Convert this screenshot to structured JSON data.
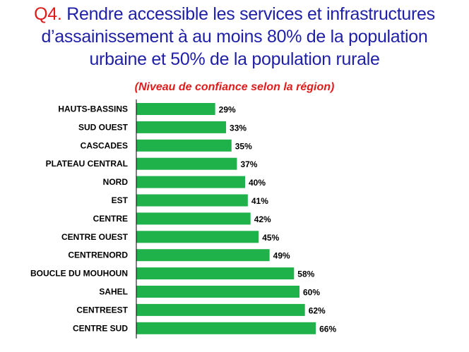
{
  "title": {
    "qnum": "Q4.",
    "line1": " Rendre accessible les services et infrastructures",
    "line2": "d’assainissement à au moins 80% de la population",
    "line3": "urbaine et 50% de la population rurale"
  },
  "subtitle": "(Niveau de confiance selon la région)",
  "colors": {
    "bar": "#1fb24a",
    "axis": "#000000"
  },
  "chart_data": {
    "type": "bar",
    "orientation": "horizontal",
    "title": "Q4. Rendre accessible les services et infrastructures d’assainissement à au moins 80% de la population urbaine et 50% de la population rurale",
    "subtitle": "(Niveau de confiance selon la région)",
    "categories": [
      "HAUTS-BASSINS",
      "SUD OUEST",
      "CASCADES",
      "PLATEAU CENTRAL",
      "NORD",
      "EST",
      "CENTRE",
      "CENTRE OUEST",
      "CENTRENORD",
      "BOUCLE DU MOUHOUN",
      "SAHEL",
      "CENTREEST",
      "CENTRE SUD"
    ],
    "values": [
      29,
      33,
      35,
      37,
      40,
      41,
      42,
      45,
      49,
      58,
      60,
      62,
      66
    ],
    "value_labels": [
      "29%",
      "33%",
      "35%",
      "37%",
      "40%",
      "41%",
      "42%",
      "45%",
      "49%",
      "58%",
      "60%",
      "62%",
      "66%"
    ],
    "unit": "%",
    "xlim": [
      0,
      100
    ],
    "grid": false,
    "legend": "none"
  }
}
